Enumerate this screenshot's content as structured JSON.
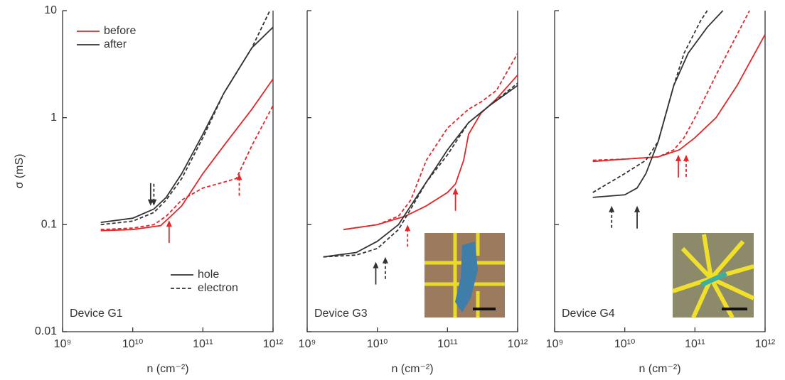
{
  "chart_data": [
    {
      "type": "line",
      "annotation": "Device G1",
      "ylabel": "σ (mS)",
      "xlabel": "n (cm⁻²)",
      "xscale": "log",
      "yscale": "log",
      "xlim": [
        1000000000.0,
        1000000000000.0
      ],
      "ylim": [
        0.01,
        10
      ],
      "xticks": [
        {
          "value": 1000000000.0,
          "label": "10⁹"
        },
        {
          "value": 10000000000.0,
          "label": "10¹⁰"
        },
        {
          "value": 100000000000.0,
          "label": "10¹¹"
        },
        {
          "value": 1000000000000.0,
          "label": "10¹²"
        }
      ],
      "yticks": [
        0.01,
        0.1,
        1,
        10
      ],
      "ytick_labels": true,
      "legend": {
        "colors": [
          {
            "label": "before",
            "color": "#e3262a"
          },
          {
            "label": "after",
            "color": "#333333"
          }
        ],
        "styles": [
          {
            "label": "hole",
            "dashed": false
          },
          {
            "label": "electron",
            "dashed": true
          }
        ]
      },
      "series": [
        {
          "color": "#e3262a",
          "dashed": false,
          "x": [
            3500000000.0,
            10000000000.0,
            25000000000.0,
            35000000000.0,
            50000000000.0,
            100000000000.0,
            200000000000.0,
            500000000000.0,
            1000000000000.0
          ],
          "values": [
            0.088,
            0.09,
            0.098,
            0.12,
            0.15,
            0.3,
            0.55,
            1.2,
            2.3
          ]
        },
        {
          "color": "#e3262a",
          "dashed": true,
          "x": [
            3500000000.0,
            10000000000.0,
            20000000000.0,
            30000000000.0,
            50000000000.0,
            100000000000.0,
            200000000000.0,
            300000000000.0,
            500000000000.0,
            1000000000000.0
          ],
          "values": [
            0.09,
            0.093,
            0.1,
            0.12,
            0.17,
            0.22,
            0.25,
            0.27,
            0.55,
            1.3
          ]
        },
        {
          "color": "#333333",
          "dashed": false,
          "x": [
            3500000000.0,
            10000000000.0,
            20000000000.0,
            30000000000.0,
            50000000000.0,
            100000000000.0,
            200000000000.0,
            500000000000.0,
            1000000000000.0
          ],
          "values": [
            0.105,
            0.115,
            0.14,
            0.18,
            0.3,
            0.7,
            1.7,
            4.5,
            7
          ]
        },
        {
          "color": "#333333",
          "dashed": true,
          "x": [
            3500000000.0,
            10000000000.0,
            20000000000.0,
            30000000000.0,
            50000000000.0,
            100000000000.0,
            200000000000.0,
            500000000000.0,
            900000000000.0
          ],
          "values": [
            0.1,
            0.108,
            0.13,
            0.17,
            0.27,
            0.65,
            1.7,
            4.5,
            10
          ]
        }
      ],
      "arrows": [
        {
          "x": 18000000000.0,
          "y": 0.15,
          "color": "#333333",
          "dashed": false,
          "direction": "down"
        },
        {
          "x": 20000000000.0,
          "y": 0.15,
          "color": "#333333",
          "dashed": true,
          "direction": "down"
        },
        {
          "x": 33000000000.0,
          "y": 0.11,
          "color": "#e3262a",
          "dashed": false,
          "direction": "up"
        },
        {
          "x": 330000000000.0,
          "y": 0.3,
          "color": "#e3262a",
          "dashed": true,
          "direction": "up"
        }
      ]
    },
    {
      "type": "line",
      "annotation": "Device G3",
      "xlabel": "n (cm⁻²)",
      "xscale": "log",
      "yscale": "log",
      "xlim": [
        1000000000.0,
        1000000000000.0
      ],
      "ylim": [
        0.01,
        10
      ],
      "xticks": [
        {
          "value": 1000000000.0,
          "label": "10⁹"
        },
        {
          "value": 10000000000.0,
          "label": "10¹⁰"
        },
        {
          "value": 100000000000.0,
          "label": "10¹¹"
        },
        {
          "value": 1000000000000.0,
          "label": "10¹²"
        }
      ],
      "yticks": [
        0.01,
        0.1,
        1,
        10
      ],
      "ytick_labels": false,
      "series": [
        {
          "color": "#e3262a",
          "dashed": false,
          "x": [
            3300000000.0,
            10000000000.0,
            25000000000.0,
            50000000000.0,
            100000000000.0,
            130000000000.0,
            170000000000.0,
            200000000000.0,
            300000000000.0,
            500000000000.0,
            1000000000000.0
          ],
          "values": [
            0.09,
            0.1,
            0.12,
            0.15,
            0.2,
            0.24,
            0.4,
            0.7,
            1.1,
            1.5,
            2.5
          ]
        },
        {
          "color": "#e3262a",
          "dashed": true,
          "x": [
            3300000000.0,
            10000000000.0,
            20000000000.0,
            30000000000.0,
            50000000000.0,
            100000000000.0,
            200000000000.0,
            300000000000.0,
            500000000000.0,
            1000000000000.0
          ],
          "values": [
            0.09,
            0.1,
            0.12,
            0.17,
            0.4,
            0.8,
            1.2,
            1.4,
            1.8,
            4
          ]
        },
        {
          "color": "#333333",
          "dashed": false,
          "x": [
            1700000000.0,
            5000000000.0,
            10000000000.0,
            20000000000.0,
            30000000000.0,
            50000000000.0,
            100000000000.0,
            200000000000.0,
            400000000000.0,
            1000000000000.0
          ],
          "values": [
            0.05,
            0.055,
            0.07,
            0.1,
            0.15,
            0.25,
            0.5,
            0.9,
            1.3,
            2
          ]
        },
        {
          "color": "#333333",
          "dashed": true,
          "x": [
            1700000000.0,
            5000000000.0,
            10000000000.0,
            20000000000.0,
            30000000000.0,
            50000000000.0,
            100000000000.0,
            200000000000.0,
            400000000000.0,
            1000000000000.0
          ],
          "values": [
            0.05,
            0.052,
            0.06,
            0.09,
            0.14,
            0.25,
            0.45,
            0.9,
            1.3,
            2.1
          ]
        }
      ],
      "arrows": [
        {
          "x": 9500000000.0,
          "y": 0.045,
          "color": "#333333",
          "dashed": false,
          "direction": "up"
        },
        {
          "x": 13000000000.0,
          "y": 0.05,
          "color": "#333333",
          "dashed": true,
          "direction": "up"
        },
        {
          "x": 27000000000.0,
          "y": 0.1,
          "color": "#e3262a",
          "dashed": true,
          "direction": "up"
        },
        {
          "x": 130000000000.0,
          "y": 0.22,
          "color": "#e3262a",
          "dashed": false,
          "direction": "up"
        }
      ]
    },
    {
      "type": "line",
      "annotation": "Device G4",
      "xlabel": "n (cm⁻²)",
      "xscale": "log",
      "yscale": "log",
      "xlim": [
        1000000000.0,
        1000000000000.0
      ],
      "ylim": [
        0.01,
        10
      ],
      "xticks": [
        {
          "value": 1000000000.0,
          "label": "10⁹"
        },
        {
          "value": 10000000000.0,
          "label": "10¹⁰"
        },
        {
          "value": 100000000000.0,
          "label": "10¹¹"
        },
        {
          "value": 1000000000000.0,
          "label": "10¹²"
        }
      ],
      "yticks": [
        0.01,
        0.1,
        1,
        10
      ],
      "ytick_labels": false,
      "series": [
        {
          "color": "#e3262a",
          "dashed": false,
          "x": [
            3500000000.0,
            10000000000.0,
            30000000000.0,
            60000000000.0,
            100000000000.0,
            200000000000.0,
            400000000000.0,
            1000000000000.0
          ],
          "values": [
            0.39,
            0.41,
            0.43,
            0.5,
            0.65,
            1,
            2,
            6
          ]
        },
        {
          "color": "#e3262a",
          "dashed": true,
          "x": [
            3500000000.0,
            10000000000.0,
            30000000000.0,
            50000000000.0,
            70000000000.0,
            100000000000.0,
            200000000000.0,
            400000000000.0,
            600000000000.0
          ],
          "values": [
            0.4,
            0.41,
            0.43,
            0.5,
            0.65,
            1,
            2.5,
            6,
            10
          ]
        },
        {
          "color": "#333333",
          "dashed": false,
          "x": [
            3500000000.0,
            10000000000.0,
            15000000000.0,
            20000000000.0,
            30000000000.0,
            50000000000.0,
            80000000000.0,
            150000000000.0,
            250000000000.0
          ],
          "values": [
            0.18,
            0.19,
            0.22,
            0.3,
            0.6,
            2,
            4,
            7,
            10
          ]
        },
        {
          "color": "#333333",
          "dashed": true,
          "x": [
            3500000000.0,
            10000000000.0,
            20000000000.0,
            30000000000.0,
            50000000000.0,
            70000000000.0,
            120000000000.0,
            150000000000.0
          ],
          "values": [
            0.2,
            0.3,
            0.4,
            0.6,
            2,
            4,
            8,
            10
          ]
        }
      ],
      "arrows": [
        {
          "x": 6500000000.0,
          "y": 0.15,
          "color": "#333333",
          "dashed": true,
          "direction": "up"
        },
        {
          "x": 15000000000.0,
          "y": 0.15,
          "color": "#333333",
          "dashed": false,
          "direction": "up"
        },
        {
          "x": 58000000000.0,
          "y": 0.45,
          "color": "#e3262a",
          "dashed": false,
          "direction": "up"
        },
        {
          "x": 75000000000.0,
          "y": 0.45,
          "color": "#e3262a",
          "dashed": true,
          "direction": "up"
        }
      ]
    }
  ]
}
